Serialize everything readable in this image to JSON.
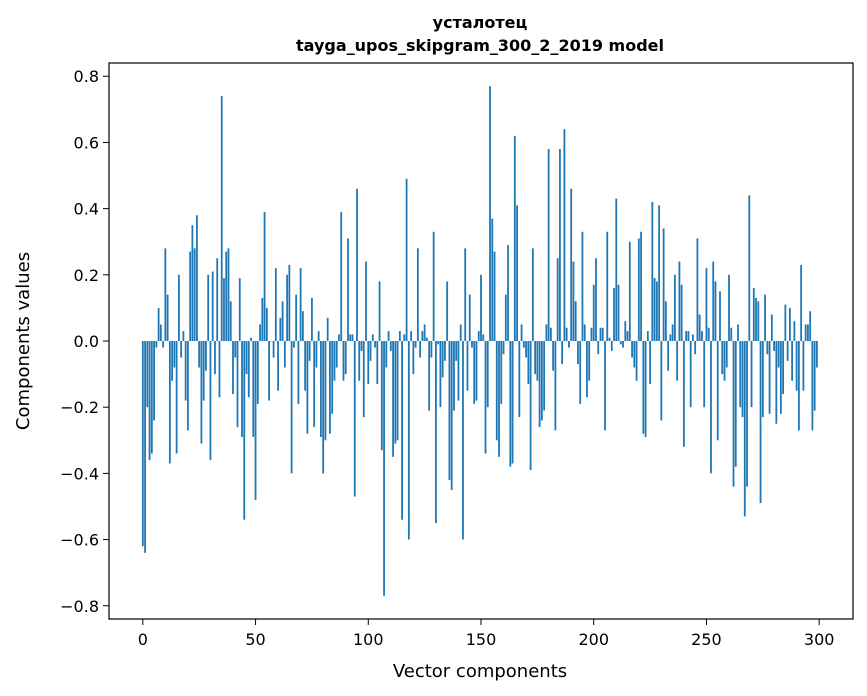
{
  "chart_data": {
    "type": "bar",
    "title_line1": "усталотец",
    "title_line2": "tayga_upos_skipgram_300_2_2019 model",
    "xlabel": "Vector components",
    "ylabel": "Components values",
    "xlim": [
      -15,
      315
    ],
    "ylim": [
      -0.84,
      0.84
    ],
    "xticks": [
      0,
      50,
      100,
      150,
      200,
      250,
      300
    ],
    "xtick_labels": [
      "0",
      "50",
      "100",
      "150",
      "200",
      "250",
      "300"
    ],
    "yticks": [
      0.8,
      0.6,
      0.4,
      0.2,
      0.0,
      -0.2,
      -0.4,
      -0.6,
      -0.8
    ],
    "ytick_labels": [
      "0.8",
      "0.6",
      "0.4",
      "0.2",
      "0.0",
      "−0.2",
      "−0.4",
      "−0.6",
      "−0.8"
    ],
    "bar_color": "#1f77b4",
    "values": [
      -0.62,
      -0.64,
      -0.2,
      -0.36,
      -0.34,
      -0.24,
      -0.02,
      0.1,
      0.05,
      -0.02,
      0.28,
      0.14,
      -0.37,
      -0.12,
      -0.08,
      -0.34,
      0.2,
      -0.05,
      0.03,
      -0.18,
      -0.27,
      0.27,
      0.35,
      0.28,
      0.38,
      -0.08,
      -0.31,
      -0.18,
      -0.09,
      0.2,
      -0.36,
      0.21,
      -0.1,
      0.25,
      -0.17,
      0.74,
      0.19,
      0.27,
      0.28,
      0.12,
      -0.16,
      -0.05,
      -0.26,
      0.19,
      -0.29,
      -0.54,
      -0.1,
      -0.17,
      0.01,
      -0.29,
      -0.48,
      -0.19,
      0.05,
      0.13,
      0.39,
      0.1,
      -0.18,
      0.0,
      -0.05,
      0.22,
      -0.15,
      0.07,
      0.12,
      -0.08,
      0.2,
      0.23,
      -0.4,
      -0.02,
      0.14,
      -0.19,
      0.22,
      0.09,
      -0.15,
      -0.28,
      -0.06,
      0.13,
      -0.26,
      -0.08,
      0.03,
      -0.29,
      -0.4,
      -0.3,
      0.07,
      -0.28,
      -0.22,
      -0.12,
      -0.08,
      0.02,
      0.39,
      -0.12,
      -0.1,
      0.31,
      0.02,
      0.02,
      -0.47,
      0.46,
      -0.12,
      -0.03,
      -0.23,
      0.24,
      -0.13,
      -0.06,
      0.02,
      -0.02,
      -0.13,
      0.18,
      -0.33,
      -0.77,
      -0.08,
      0.03,
      -0.03,
      -0.35,
      -0.31,
      -0.3,
      0.03,
      -0.54,
      0.02,
      0.49,
      -0.6,
      0.03,
      -0.1,
      -0.02,
      0.28,
      -0.05,
      0.03,
      0.05,
      0.01,
      -0.21,
      -0.05,
      0.33,
      -0.55,
      -0.01,
      -0.2,
      -0.11,
      -0.06,
      0.18,
      -0.42,
      -0.45,
      -0.21,
      -0.06,
      -0.18,
      0.05,
      -0.6,
      0.28,
      -0.15,
      0.14,
      -0.02,
      -0.19,
      -0.18,
      0.03,
      0.2,
      0.02,
      -0.34,
      -0.2,
      0.77,
      0.37,
      0.27,
      -0.3,
      -0.35,
      -0.19,
      -0.04,
      0.14,
      0.29,
      -0.38,
      -0.37,
      0.62,
      0.41,
      -0.23,
      0.05,
      -0.02,
      -0.05,
      -0.13,
      -0.39,
      0.28,
      -0.1,
      -0.12,
      -0.26,
      -0.24,
      -0.21,
      0.05,
      0.58,
      0.04,
      -0.09,
      -0.27,
      0.25,
      0.58,
      -0.07,
      0.64,
      0.04,
      -0.02,
      0.46,
      0.24,
      0.12,
      -0.07,
      -0.19,
      0.33,
      0.05,
      -0.17,
      -0.12,
      0.04,
      0.17,
      0.25,
      -0.04,
      0.04,
      0.04,
      -0.27,
      0.33,
      0.01,
      -0.03,
      0.16,
      0.43,
      0.17,
      -0.01,
      -0.02,
      0.06,
      0.03,
      0.3,
      -0.05,
      -0.08,
      -0.12,
      0.31,
      0.33,
      -0.28,
      -0.29,
      0.03,
      -0.13,
      0.42,
      0.19,
      0.18,
      0.41,
      -0.24,
      0.34,
      0.12,
      -0.09,
      0.02,
      0.05,
      0.2,
      -0.12,
      0.24,
      0.17,
      -0.32,
      0.03,
      0.03,
      -0.2,
      0.02,
      -0.04,
      0.31,
      0.08,
      0.03,
      -0.2,
      0.22,
      0.04,
      -0.4,
      0.24,
      0.18,
      -0.3,
      0.15,
      -0.1,
      -0.12,
      -0.08,
      0.2,
      0.04,
      -0.44,
      -0.38,
      0.05,
      -0.2,
      -0.23,
      -0.53,
      -0.44,
      0.44,
      -0.2,
      0.16,
      0.13,
      0.12,
      -0.49,
      -0.23,
      0.14,
      -0.04,
      -0.22,
      0.08,
      -0.03,
      -0.25,
      -0.08,
      -0.22,
      -0.16,
      0.11,
      -0.06,
      0.1,
      -0.12,
      0.06,
      -0.15,
      -0.27,
      0.23,
      -0.15,
      0.05,
      0.05,
      0.09,
      -0.27,
      -0.21,
      -0.08
    ]
  }
}
